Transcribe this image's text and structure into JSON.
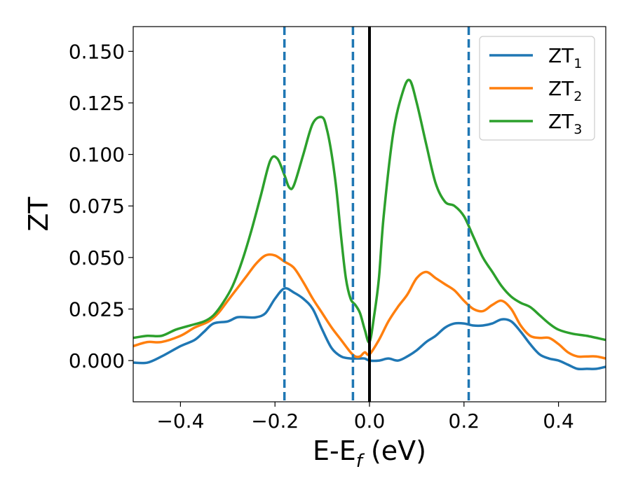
{
  "chart_data": {
    "type": "line",
    "xlabel_main": "E-E",
    "xlabel_sub": "f",
    "xlabel_unit": " (eV)",
    "ylabel": "ZT",
    "xlim": [
      -0.5,
      0.5
    ],
    "ylim": [
      -0.02,
      0.162
    ],
    "xticks": [
      -0.4,
      -0.2,
      0.0,
      0.2,
      0.4
    ],
    "xtick_labels": [
      "−0.4",
      "−0.2",
      "0.0",
      "0.2",
      "0.4"
    ],
    "yticks": [
      0.0,
      0.025,
      0.05,
      0.075,
      0.1,
      0.125,
      0.15
    ],
    "ytick_labels": [
      "0.000",
      "0.025",
      "0.050",
      "0.075",
      "0.100",
      "0.125",
      "0.150"
    ],
    "grid": false,
    "legend_position": "top-right",
    "vertical_lines": [
      {
        "x": -0.18,
        "style": "dashed",
        "color": "#1f77b4"
      },
      {
        "x": -0.035,
        "style": "dashed",
        "color": "#1f77b4"
      },
      {
        "x": 0.0,
        "style": "solid",
        "color": "#000000"
      },
      {
        "x": 0.21,
        "style": "dashed",
        "color": "#1f77b4"
      }
    ],
    "series": [
      {
        "name": "ZT",
        "subscript": "1",
        "color": "#1f77b4",
        "x": [
          -0.5,
          -0.47,
          -0.44,
          -0.4,
          -0.37,
          -0.35,
          -0.33,
          -0.3,
          -0.28,
          -0.26,
          -0.24,
          -0.22,
          -0.2,
          -0.18,
          -0.16,
          -0.14,
          -0.12,
          -0.1,
          -0.08,
          -0.06,
          -0.04,
          -0.03,
          -0.02,
          -0.01,
          0.0,
          0.02,
          0.04,
          0.06,
          0.08,
          0.1,
          0.12,
          0.14,
          0.16,
          0.18,
          0.2,
          0.22,
          0.24,
          0.26,
          0.28,
          0.3,
          0.32,
          0.34,
          0.36,
          0.38,
          0.4,
          0.42,
          0.44,
          0.46,
          0.48,
          0.5
        ],
        "y": [
          -0.001,
          -0.001,
          0.002,
          0.007,
          0.01,
          0.014,
          0.018,
          0.019,
          0.021,
          0.021,
          0.021,
          0.023,
          0.03,
          0.035,
          0.033,
          0.03,
          0.025,
          0.015,
          0.006,
          0.002,
          0.001,
          0.001,
          0.001,
          0.001,
          0.0,
          0.0,
          0.001,
          0.0,
          0.002,
          0.005,
          0.009,
          0.012,
          0.016,
          0.018,
          0.018,
          0.017,
          0.017,
          0.018,
          0.02,
          0.019,
          0.014,
          0.008,
          0.003,
          0.001,
          0.0,
          -0.002,
          -0.004,
          -0.004,
          -0.004,
          -0.003
        ]
      },
      {
        "name": "ZT",
        "subscript": "2",
        "color": "#ff7f0e",
        "x": [
          -0.5,
          -0.47,
          -0.44,
          -0.4,
          -0.37,
          -0.34,
          -0.32,
          -0.3,
          -0.28,
          -0.26,
          -0.24,
          -0.22,
          -0.2,
          -0.18,
          -0.16,
          -0.14,
          -0.12,
          -0.1,
          -0.08,
          -0.06,
          -0.04,
          -0.03,
          -0.02,
          -0.01,
          0.0,
          0.02,
          0.04,
          0.06,
          0.08,
          0.1,
          0.12,
          0.14,
          0.16,
          0.18,
          0.2,
          0.22,
          0.24,
          0.26,
          0.28,
          0.3,
          0.32,
          0.34,
          0.36,
          0.38,
          0.4,
          0.42,
          0.44,
          0.46,
          0.48,
          0.5
        ],
        "y": [
          0.007,
          0.009,
          0.009,
          0.012,
          0.016,
          0.019,
          0.023,
          0.029,
          0.035,
          0.041,
          0.047,
          0.051,
          0.051,
          0.048,
          0.045,
          0.038,
          0.03,
          0.023,
          0.016,
          0.01,
          0.004,
          0.002,
          0.002,
          0.004,
          0.003,
          0.01,
          0.019,
          0.026,
          0.032,
          0.04,
          0.043,
          0.04,
          0.037,
          0.034,
          0.029,
          0.025,
          0.024,
          0.027,
          0.029,
          0.025,
          0.017,
          0.012,
          0.011,
          0.011,
          0.008,
          0.004,
          0.002,
          0.002,
          0.002,
          0.001
        ]
      },
      {
        "name": "ZT",
        "subscript": "3",
        "color": "#2ca02c",
        "x": [
          -0.5,
          -0.47,
          -0.44,
          -0.41,
          -0.38,
          -0.35,
          -0.33,
          -0.31,
          -0.29,
          -0.27,
          -0.25,
          -0.23,
          -0.21,
          -0.195,
          -0.18,
          -0.17,
          -0.16,
          -0.14,
          -0.12,
          -0.1,
          -0.09,
          -0.08,
          -0.07,
          -0.06,
          -0.05,
          -0.04,
          -0.03,
          -0.02,
          -0.01,
          0.0,
          0.01,
          0.02,
          0.03,
          0.05,
          0.07,
          0.085,
          0.1,
          0.12,
          0.14,
          0.16,
          0.18,
          0.2,
          0.22,
          0.24,
          0.26,
          0.28,
          0.3,
          0.32,
          0.34,
          0.36,
          0.38,
          0.4,
          0.43,
          0.46,
          0.5
        ],
        "y": [
          0.011,
          0.012,
          0.012,
          0.015,
          0.017,
          0.019,
          0.022,
          0.028,
          0.036,
          0.048,
          0.063,
          0.08,
          0.097,
          0.098,
          0.09,
          0.084,
          0.085,
          0.1,
          0.115,
          0.118,
          0.112,
          0.1,
          0.083,
          0.06,
          0.04,
          0.03,
          0.027,
          0.023,
          0.015,
          0.009,
          0.022,
          0.04,
          0.07,
          0.11,
          0.13,
          0.136,
          0.125,
          0.105,
          0.086,
          0.077,
          0.075,
          0.07,
          0.06,
          0.05,
          0.043,
          0.036,
          0.031,
          0.028,
          0.026,
          0.022,
          0.018,
          0.015,
          0.013,
          0.012,
          0.01
        ]
      }
    ]
  }
}
